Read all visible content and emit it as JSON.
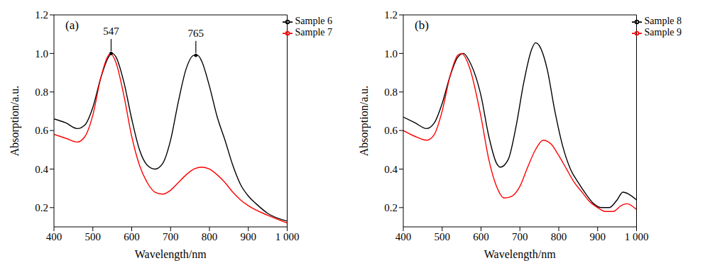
{
  "chart_data": [
    {
      "type": "line",
      "title": "(a)",
      "xlabel": "Wavelength/nm",
      "ylabel": "Absorption/a.u.",
      "xlim": [
        400,
        1000
      ],
      "xticks": [
        400,
        500,
        600,
        700,
        800,
        900,
        {
          "value": 1000,
          "label": "1 000"
        }
      ],
      "ylim": [
        0.1,
        1.2
      ],
      "yticks": [
        0.2,
        0.4,
        0.6,
        0.8,
        {
          "value": 1,
          "label": "1.0"
        },
        1.2
      ],
      "legend": "upper right",
      "grid": false,
      "annotations": [
        {
          "text": "547",
          "x": 547,
          "y": 1.0
        },
        {
          "text": "765",
          "x": 765,
          "y": 0.99
        }
      ],
      "series": [
        {
          "name": "Sample 6",
          "color": "#000000",
          "x": [
            400,
            430,
            460,
            480,
            500,
            520,
            540,
            550,
            560,
            580,
            600,
            620,
            640,
            660,
            680,
            700,
            720,
            740,
            760,
            770,
            780,
            800,
            820,
            840,
            860,
            880,
            900,
            920,
            950,
            1000
          ],
          "values": [
            0.66,
            0.64,
            0.61,
            0.63,
            0.72,
            0.87,
            0.98,
            1.0,
            0.98,
            0.85,
            0.66,
            0.5,
            0.42,
            0.4,
            0.43,
            0.55,
            0.75,
            0.92,
            0.99,
            0.99,
            0.96,
            0.83,
            0.67,
            0.55,
            0.42,
            0.32,
            0.26,
            0.22,
            0.17,
            0.13
          ]
        },
        {
          "name": "Sample 7",
          "color": "#ff0000",
          "x": [
            400,
            430,
            460,
            480,
            500,
            520,
            540,
            545,
            560,
            580,
            600,
            620,
            640,
            660,
            680,
            700,
            720,
            740,
            760,
            780,
            800,
            820,
            840,
            860,
            880,
            900,
            950,
            1000
          ],
          "values": [
            0.58,
            0.56,
            0.54,
            0.57,
            0.68,
            0.87,
            0.99,
            1.0,
            0.95,
            0.78,
            0.57,
            0.42,
            0.33,
            0.28,
            0.27,
            0.29,
            0.33,
            0.37,
            0.4,
            0.41,
            0.4,
            0.37,
            0.33,
            0.28,
            0.24,
            0.21,
            0.16,
            0.12
          ]
        }
      ]
    },
    {
      "type": "line",
      "title": "(b)",
      "xlabel": "Wavelength/nm",
      "ylabel": "Absorption/a.u.",
      "xlim": [
        400,
        1000
      ],
      "xticks": [
        400,
        500,
        600,
        700,
        800,
        900,
        {
          "value": 1000,
          "label": "1 000"
        }
      ],
      "ylim": [
        0.1,
        1.2
      ],
      "yticks": [
        0.2,
        0.4,
        0.6,
        0.8,
        {
          "value": 1,
          "label": "1.0"
        },
        1.2
      ],
      "legend": "upper right",
      "grid": false,
      "series": [
        {
          "name": "Sample 8",
          "color": "#000000",
          "x": [
            400,
            430,
            460,
            480,
            500,
            520,
            540,
            555,
            570,
            600,
            620,
            640,
            650,
            670,
            690,
            710,
            730,
            740,
            750,
            770,
            790,
            810,
            830,
            850,
            870,
            890,
            910,
            930,
            950,
            965,
            980,
            1000
          ],
          "values": [
            0.67,
            0.64,
            0.61,
            0.64,
            0.74,
            0.88,
            0.98,
            1.0,
            0.96,
            0.78,
            0.57,
            0.43,
            0.41,
            0.45,
            0.62,
            0.85,
            1.02,
            1.055,
            1.04,
            0.92,
            0.7,
            0.52,
            0.4,
            0.33,
            0.27,
            0.22,
            0.2,
            0.2,
            0.24,
            0.28,
            0.27,
            0.24
          ]
        },
        {
          "name": "Sample 9",
          "color": "#ff0000",
          "x": [
            400,
            430,
            460,
            480,
            500,
            520,
            540,
            550,
            570,
            600,
            620,
            640,
            660,
            680,
            700,
            720,
            740,
            760,
            780,
            800,
            820,
            840,
            860,
            880,
            900,
            920,
            940,
            960,
            975,
            1000
          ],
          "values": [
            0.6,
            0.57,
            0.55,
            0.58,
            0.7,
            0.88,
            0.99,
            1.0,
            0.93,
            0.67,
            0.45,
            0.31,
            0.25,
            0.26,
            0.31,
            0.41,
            0.5,
            0.55,
            0.53,
            0.47,
            0.4,
            0.33,
            0.28,
            0.23,
            0.2,
            0.18,
            0.18,
            0.21,
            0.22,
            0.19
          ]
        }
      ]
    }
  ]
}
